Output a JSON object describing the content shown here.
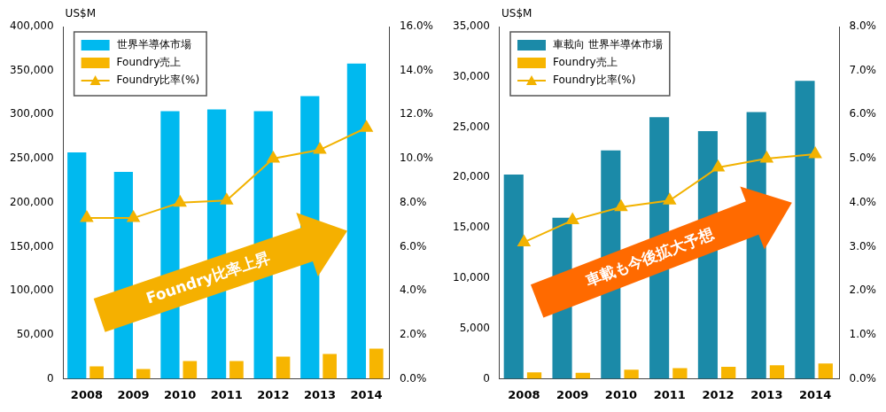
{
  "chart_data": [
    {
      "type": "bar",
      "ylabel": "US$M",
      "legend": "upper left",
      "grid": false,
      "categories": [
        "2008",
        "2009",
        "2010",
        "2011",
        "2012",
        "2013",
        "2014"
      ],
      "series": [
        {
          "name": "世界半導体市場",
          "color": "#00b9ef",
          "values": [
            257000,
            235000,
            304000,
            306000,
            304000,
            321000,
            358000
          ]
        },
        {
          "name": "Foundry売上",
          "color": "#f7b500",
          "values": [
            14000,
            11000,
            20000,
            20000,
            25000,
            28000,
            34000
          ]
        },
        {
          "name": "Foundry比率(%)",
          "color": "#f2b200",
          "type": "line",
          "marker": "triangle",
          "axis": "y2",
          "values": [
            7.3,
            7.3,
            8.0,
            8.1,
            10.0,
            10.4,
            11.4
          ]
        }
      ],
      "ylim": [
        0,
        400000
      ],
      "yticks": [
        0,
        {
          "value": 50000,
          "label": "50,000"
        },
        {
          "value": 100000,
          "label": "100,000"
        },
        {
          "value": 150000,
          "label": "150,000"
        },
        {
          "value": 200000,
          "label": "200,000"
        },
        {
          "value": 250000,
          "label": "250,000"
        },
        {
          "value": 300000,
          "label": "300,000"
        },
        {
          "value": 350000,
          "label": "350,000"
        },
        {
          "value": 400000,
          "label": "400,000"
        }
      ],
      "y2lim": [
        0,
        16
      ],
      "y2ticks": [
        {
          "value": 0,
          "label": "0.0%"
        },
        {
          "value": 2,
          "label": "2.0%"
        },
        {
          "value": 4,
          "label": "4.0%"
        },
        {
          "value": 6,
          "label": "6.0%"
        },
        {
          "value": 8,
          "label": "8.0%"
        },
        {
          "value": 10,
          "label": "10.0%"
        },
        {
          "value": 12,
          "label": "12.0%"
        },
        {
          "value": 14,
          "label": "14.0%"
        },
        {
          "value": 16,
          "label": "16.0%"
        }
      ],
      "annotations": [
        {
          "text": "Foundry比率上昇",
          "color": "#f5b000"
        }
      ]
    },
    {
      "type": "bar",
      "ylabel": "US$M",
      "legend": "upper left",
      "grid": false,
      "categories": [
        "2008",
        "2009",
        "2010",
        "2011",
        "2012",
        "2013",
        "2014"
      ],
      "series": [
        {
          "name": "車載向 世界半導体市場",
          "color": "#1b8aa8",
          "values": [
            20300,
            16000,
            22700,
            26000,
            24600,
            26500,
            29600
          ]
        },
        {
          "name": "Foundry売上",
          "color": "#f7b500",
          "values": [
            630,
            575,
            885,
            1050,
            1180,
            1325,
            1510
          ]
        },
        {
          "name": "Foundry比率(%)",
          "color": "#f2b200",
          "type": "line",
          "marker": "triangle",
          "axis": "y2",
          "values": [
            3.1,
            3.6,
            3.9,
            4.05,
            4.8,
            5.0,
            5.1
          ]
        }
      ],
      "ylim": [
        0,
        35000
      ],
      "yticks": [
        0,
        {
          "value": 5000,
          "label": "5,000"
        },
        {
          "value": 10000,
          "label": "10,000"
        },
        {
          "value": 15000,
          "label": "15,000"
        },
        {
          "value": 20000,
          "label": "20,000"
        },
        {
          "value": 25000,
          "label": "25,000"
        },
        {
          "value": 30000,
          "label": "30,000"
        },
        {
          "value": 35000,
          "label": "35,000"
        }
      ],
      "y2lim": [
        0,
        8
      ],
      "y2ticks": [
        {
          "value": 0,
          "label": "0.0%"
        },
        {
          "value": 1,
          "label": "1.0%"
        },
        {
          "value": 2,
          "label": "2.0%"
        },
        {
          "value": 3,
          "label": "3.0%"
        },
        {
          "value": 4,
          "label": "4.0%"
        },
        {
          "value": 5,
          "label": "5.0%"
        },
        {
          "value": 6,
          "label": "6.0%"
        },
        {
          "value": 7,
          "label": "7.0%"
        },
        {
          "value": 8,
          "label": "8.0%"
        }
      ],
      "annotations": [
        {
          "text": "車載も今後拡大予想",
          "color": "#ff6a00"
        }
      ]
    }
  ]
}
